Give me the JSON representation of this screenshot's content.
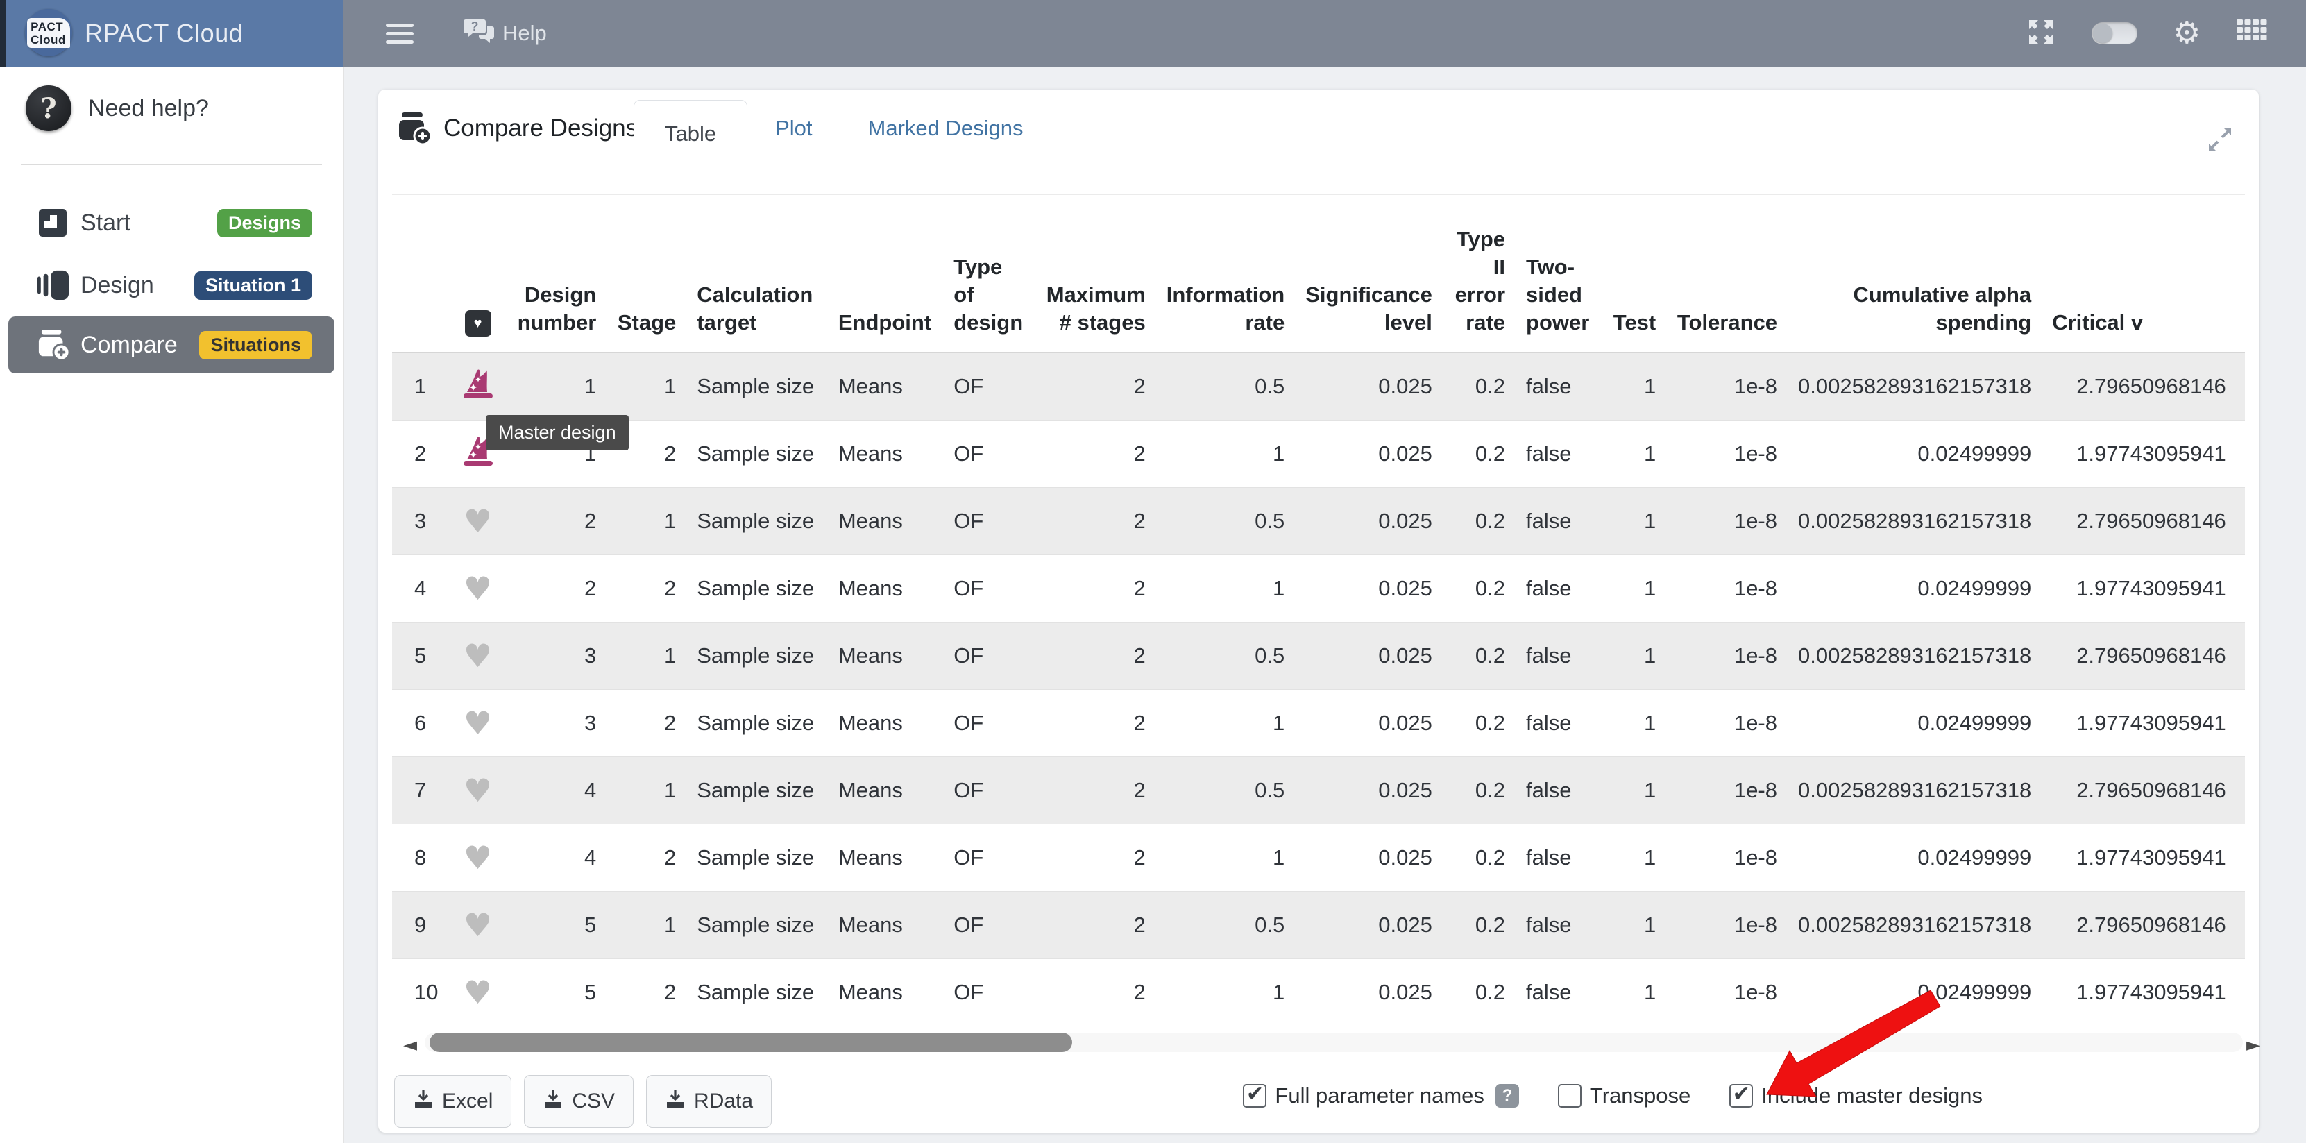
{
  "topbar": {
    "help_label": "Help"
  },
  "brand": {
    "app_title": "RPACT Cloud",
    "logo_line1": "PACT",
    "logo_line2": "Cloud"
  },
  "sidebar": {
    "need_help_label": "Need help?",
    "items": [
      {
        "id": "start",
        "label": "Start",
        "badge": "Designs",
        "badge_bg": "#53a147",
        "badge_fg": "#ffffff",
        "active": false
      },
      {
        "id": "design",
        "label": "Design",
        "badge": "Situation 1",
        "badge_bg": "#2d4d78",
        "badge_fg": "#ffffff",
        "active": false
      },
      {
        "id": "compare",
        "label": "Compare",
        "badge": "Situations",
        "badge_bg": "#f2c12e",
        "badge_fg": "#333333",
        "active": true
      }
    ]
  },
  "card": {
    "title": "Compare Designs",
    "tabs": [
      {
        "label": "Table",
        "active": true
      },
      {
        "label": "Plot",
        "active": false
      },
      {
        "label": "Marked Designs",
        "active": false
      }
    ],
    "tooltip": "Master design"
  },
  "table": {
    "columns": [
      {
        "label": "",
        "align": "left",
        "type": "index"
      },
      {
        "label": "",
        "align": "center",
        "type": "mark"
      },
      {
        "label": "Design\nnumber",
        "align": "right"
      },
      {
        "label": "Stage",
        "align": "right"
      },
      {
        "label": "Calculation\ntarget",
        "align": "left"
      },
      {
        "label": "Endpoint",
        "align": "left"
      },
      {
        "label": "Type\nof\ndesign",
        "align": "left"
      },
      {
        "label": "Maximum\n# stages",
        "align": "right"
      },
      {
        "label": "Information\nrate",
        "align": "right"
      },
      {
        "label": "Significance\nlevel",
        "align": "right"
      },
      {
        "label": "Type\nII\nerror\nrate",
        "align": "right"
      },
      {
        "label": "Two-\nsided\npower",
        "align": "left"
      },
      {
        "label": "Test",
        "align": "right"
      },
      {
        "label": "Tolerance",
        "align": "right"
      },
      {
        "label": "Cumulative alpha\nspending",
        "align": "right"
      },
      {
        "label": "Critical v",
        "align": "left",
        "type": "critical"
      }
    ],
    "rows": [
      {
        "index": "1",
        "mark": "master",
        "cells": [
          "1",
          "1",
          "Sample size",
          "Means",
          "OF",
          "2",
          "0.5",
          "0.025",
          "0.2",
          "false",
          "1",
          "1e-8",
          "0.002582893162157318",
          "2.79650968146"
        ]
      },
      {
        "index": "2",
        "mark": "master",
        "cells": [
          "1",
          "2",
          "Sample size",
          "Means",
          "OF",
          "2",
          "1",
          "0.025",
          "0.2",
          "false",
          "1",
          "1e-8",
          "0.02499999",
          "1.97743095941"
        ]
      },
      {
        "index": "3",
        "mark": "heart",
        "cells": [
          "2",
          "1",
          "Sample size",
          "Means",
          "OF",
          "2",
          "0.5",
          "0.025",
          "0.2",
          "false",
          "1",
          "1e-8",
          "0.002582893162157318",
          "2.79650968146"
        ]
      },
      {
        "index": "4",
        "mark": "heart",
        "cells": [
          "2",
          "2",
          "Sample size",
          "Means",
          "OF",
          "2",
          "1",
          "0.025",
          "0.2",
          "false",
          "1",
          "1e-8",
          "0.02499999",
          "1.97743095941"
        ]
      },
      {
        "index": "5",
        "mark": "heart",
        "cells": [
          "3",
          "1",
          "Sample size",
          "Means",
          "OF",
          "2",
          "0.5",
          "0.025",
          "0.2",
          "false",
          "1",
          "1e-8",
          "0.002582893162157318",
          "2.79650968146"
        ]
      },
      {
        "index": "6",
        "mark": "heart",
        "cells": [
          "3",
          "2",
          "Sample size",
          "Means",
          "OF",
          "2",
          "1",
          "0.025",
          "0.2",
          "false",
          "1",
          "1e-8",
          "0.02499999",
          "1.97743095941"
        ]
      },
      {
        "index": "7",
        "mark": "heart",
        "cells": [
          "4",
          "1",
          "Sample size",
          "Means",
          "OF",
          "2",
          "0.5",
          "0.025",
          "0.2",
          "false",
          "1",
          "1e-8",
          "0.002582893162157318",
          "2.79650968146"
        ]
      },
      {
        "index": "8",
        "mark": "heart",
        "cells": [
          "4",
          "2",
          "Sample size",
          "Means",
          "OF",
          "2",
          "1",
          "0.025",
          "0.2",
          "false",
          "1",
          "1e-8",
          "0.02499999",
          "1.97743095941"
        ]
      },
      {
        "index": "9",
        "mark": "heart",
        "cells": [
          "5",
          "1",
          "Sample size",
          "Means",
          "OF",
          "2",
          "0.5",
          "0.025",
          "0.2",
          "false",
          "1",
          "1e-8",
          "0.002582893162157318",
          "2.79650968146"
        ]
      },
      {
        "index": "10",
        "mark": "heart",
        "cells": [
          "5",
          "2",
          "Sample size",
          "Means",
          "OF",
          "2",
          "1",
          "0.025",
          "0.2",
          "false",
          "1",
          "1e-8",
          "0.02499999",
          "1.97743095941"
        ]
      }
    ]
  },
  "footer": {
    "export_buttons": [
      {
        "label": "Excel"
      },
      {
        "label": "CSV"
      },
      {
        "label": "RData"
      }
    ],
    "options": [
      {
        "label": "Full parameter names",
        "checked": true,
        "help": true
      },
      {
        "label": "Transpose",
        "checked": false,
        "help": false
      },
      {
        "label": "Include master designs",
        "checked": true,
        "help": false
      }
    ]
  },
  "colors": {
    "master_icon": "#a93a72",
    "heart_icon": "#bdbdbd",
    "annotation_arrow": "#ee1111",
    "tab_link": "#4173a3",
    "brand_bar": "#5a79a6",
    "topbar": "#7e8694"
  }
}
